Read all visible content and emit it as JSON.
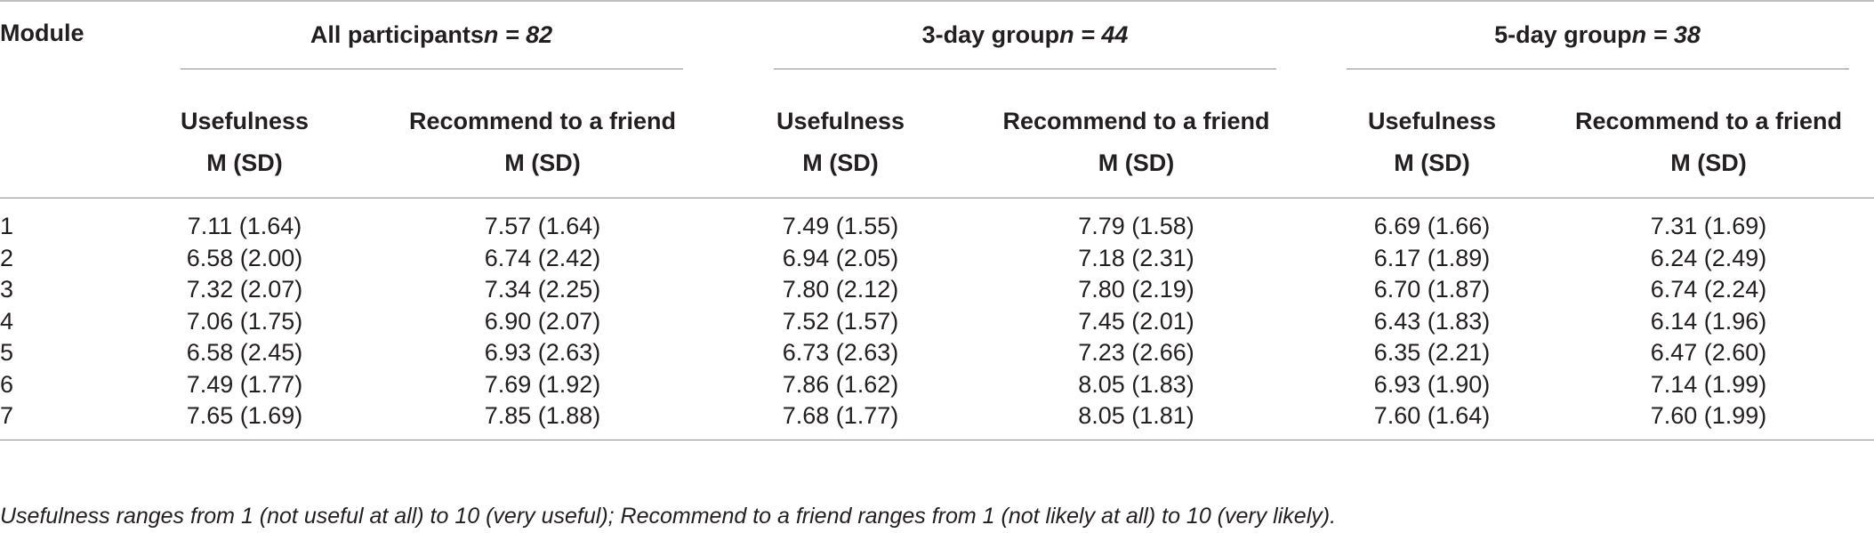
{
  "table": {
    "module_header": "Module",
    "groups": [
      {
        "label": "All participants",
        "n_label": "n = 82"
      },
      {
        "label": "3-day group",
        "n_label": "n = 44"
      },
      {
        "label": "5-day group",
        "n_label": "n = 38"
      }
    ],
    "subheaders": {
      "usefulness": "Usefulness",
      "recommend": "Recommend to a friend",
      "stat": "M (SD)"
    },
    "rows": [
      {
        "module": "1",
        "cells": [
          "7.11 (1.64)",
          "7.57 (1.64)",
          "7.49 (1.55)",
          "7.79 (1.58)",
          "6.69 (1.66)",
          "7.31 (1.69)"
        ]
      },
      {
        "module": "2",
        "cells": [
          "6.58 (2.00)",
          "6.74 (2.42)",
          "6.94 (2.05)",
          "7.18 (2.31)",
          "6.17 (1.89)",
          "6.24 (2.49)"
        ]
      },
      {
        "module": "3",
        "cells": [
          "7.32 (2.07)",
          "7.34 (2.25)",
          "7.80 (2.12)",
          "7.80 (2.19)",
          "6.70 (1.87)",
          "6.74 (2.24)"
        ]
      },
      {
        "module": "4",
        "cells": [
          "7.06 (1.75)",
          "6.90 (2.07)",
          "7.52 (1.57)",
          "7.45 (2.01)",
          "6.43 (1.83)",
          "6.14 (1.96)"
        ]
      },
      {
        "module": "5",
        "cells": [
          "6.58 (2.45)",
          "6.93 (2.63)",
          "6.73 (2.63)",
          "7.23 (2.66)",
          "6.35 (2.21)",
          "6.47 (2.60)"
        ]
      },
      {
        "module": "6",
        "cells": [
          "7.49 (1.77)",
          "7.69 (1.92)",
          "7.86 (1.62)",
          "8.05 (1.83)",
          "6.93 (1.90)",
          "7.14 (1.99)"
        ]
      },
      {
        "module": "7",
        "cells": [
          "7.65 (1.69)",
          "7.85 (1.88)",
          "7.68 (1.77)",
          "8.05 (1.81)",
          "7.60 (1.64)",
          "7.60 (1.99)"
        ]
      }
    ]
  },
  "footnote": "Usefulness ranges from 1 (not useful at all) to 10 (very useful); Recommend to a friend ranges from 1 (not likely at all) to 10 (very likely)."
}
